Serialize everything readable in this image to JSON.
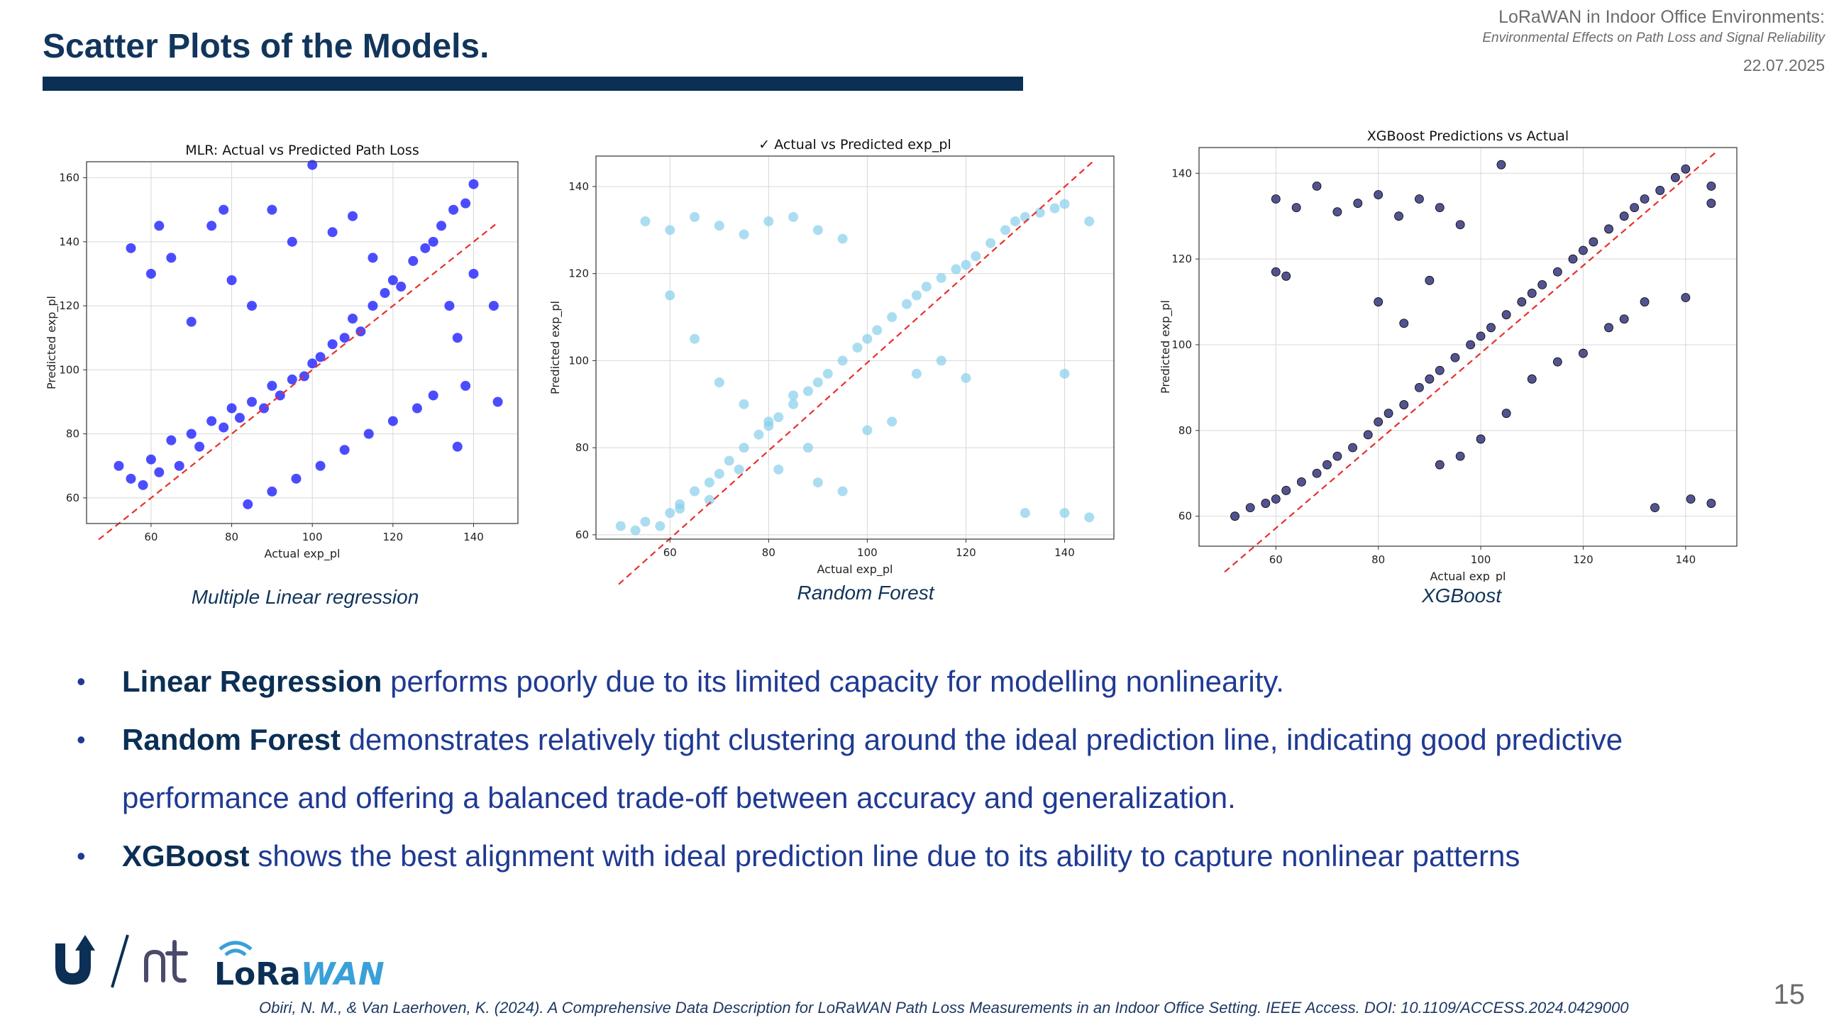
{
  "header": {
    "slide_title": "Scatter Plots of the Models.",
    "conference_title": "LoRaWAN in Indoor Office Environments:",
    "conference_subtitle": "Environmental Effects on Path Loss and Signal Reliability",
    "date": "22.07.2025"
  },
  "captions": [
    "Multiple Linear regression",
    "Random Forest",
    "XGBoost"
  ],
  "bullets": [
    {
      "bold": "Linear Regression",
      "text": " performs poorly due to its limited capacity for modelling nonlinearity."
    },
    {
      "bold": "Random Forest",
      "text": " demonstrates relatively tight clustering around the ideal prediction line, indicating good predictive performance and offering a balanced trade-off between accuracy and generalization."
    },
    {
      "bold": "XGBoost",
      "text": " shows the best alignment with ideal prediction line due to its ability to capture nonlinear patterns"
    }
  ],
  "logos": {
    "wordmark_lo": "Lo",
    "wordmark_ra": "Ra",
    "wordmark_wan": "WAN"
  },
  "footnote": "Obiri, N. M., & Van Laerhoven, K. (2024). A Comprehensive Data Description for LoRaWAN Path Loss Measurements in an Indoor Office Setting. IEEE Access. DOI: 10.1109/ACCESS.2024.0429000",
  "page_number": "15",
  "chart_data": [
    {
      "type": "scatter",
      "title": "MLR: Actual vs Predicted Path Loss",
      "xlabel": "Actual exp_pl",
      "ylabel": "Predicted exp_pl",
      "xlim": [
        44,
        151
      ],
      "ylim": [
        52,
        165
      ],
      "xticks": [
        60,
        80,
        100,
        120,
        140
      ],
      "yticks": [
        60,
        80,
        100,
        120,
        140,
        160
      ],
      "point_color": "#0000ff",
      "reference_line": {
        "color": "#e8302a",
        "style": "dashed",
        "from": [
          47,
          47
        ],
        "to": [
          146,
          146
        ]
      },
      "grid": true,
      "series": [
        {
          "points": [
            [
              52,
              70
            ],
            [
              55,
              66
            ],
            [
              58,
              64
            ],
            [
              60,
              72
            ],
            [
              62,
              68
            ],
            [
              65,
              78
            ],
            [
              67,
              70
            ],
            [
              70,
              80
            ],
            [
              72,
              76
            ],
            [
              75,
              84
            ],
            [
              78,
              82
            ],
            [
              80,
              88
            ],
            [
              82,
              85
            ],
            [
              85,
              90
            ],
            [
              88,
              88
            ],
            [
              90,
              95
            ],
            [
              92,
              92
            ],
            [
              95,
              97
            ],
            [
              98,
              98
            ],
            [
              100,
              102
            ],
            [
              102,
              104
            ],
            [
              105,
              108
            ],
            [
              108,
              110
            ],
            [
              110,
              116
            ],
            [
              112,
              112
            ],
            [
              115,
              120
            ],
            [
              118,
              124
            ],
            [
              120,
              128
            ],
            [
              122,
              126
            ],
            [
              125,
              134
            ],
            [
              128,
              138
            ],
            [
              130,
              140
            ],
            [
              132,
              145
            ],
            [
              135,
              150
            ],
            [
              138,
              152
            ],
            [
              140,
              158
            ],
            [
              136,
              110
            ],
            [
              138,
              95
            ],
            [
              140,
              130
            ],
            [
              134,
              120
            ],
            [
              60,
              130
            ],
            [
              65,
              135
            ],
            [
              70,
              115
            ],
            [
              75,
              145
            ],
            [
              80,
              128
            ],
            [
              85,
              120
            ],
            [
              90,
              150
            ],
            [
              95,
              140
            ],
            [
              100,
              164
            ],
            [
              105,
              143
            ],
            [
              110,
              148
            ],
            [
              115,
              135
            ],
            [
              55,
              138
            ],
            [
              62,
              145
            ],
            [
              78,
              150
            ],
            [
              84,
              58
            ],
            [
              90,
              62
            ],
            [
              96,
              66
            ],
            [
              102,
              70
            ],
            [
              108,
              75
            ],
            [
              114,
              80
            ],
            [
              120,
              84
            ],
            [
              126,
              88
            ],
            [
              130,
              92
            ],
            [
              145,
              120
            ],
            [
              146,
              90
            ],
            [
              136,
              76
            ]
          ]
        }
      ]
    },
    {
      "type": "scatter",
      "title": "✓ Actual vs Predicted exp_pl",
      "xlabel": "Actual exp_pl",
      "ylabel": "Predicted exp_pl",
      "xlim": [
        45,
        150
      ],
      "ylim": [
        59,
        147
      ],
      "xticks": [
        60,
        80,
        100,
        120,
        140
      ],
      "yticks": [
        60,
        80,
        100,
        120,
        140
      ],
      "point_color": "#87ceeb",
      "reference_line": {
        "color": "#e8302a",
        "style": "dashed",
        "from": [
          48,
          47
        ],
        "to": [
          146,
          146
        ]
      },
      "grid": true,
      "series": [
        {
          "points": [
            [
              50,
              62
            ],
            [
              53,
              61
            ],
            [
              55,
              63
            ],
            [
              58,
              62
            ],
            [
              60,
              65
            ],
            [
              62,
              67
            ],
            [
              65,
              70
            ],
            [
              68,
              72
            ],
            [
              70,
              74
            ],
            [
              72,
              77
            ],
            [
              75,
              80
            ],
            [
              78,
              83
            ],
            [
              80,
              86
            ],
            [
              82,
              87
            ],
            [
              85,
              90
            ],
            [
              88,
              93
            ],
            [
              90,
              95
            ],
            [
              92,
              97
            ],
            [
              95,
              100
            ],
            [
              98,
              103
            ],
            [
              100,
              105
            ],
            [
              102,
              107
            ],
            [
              105,
              110
            ],
            [
              108,
              113
            ],
            [
              110,
              115
            ],
            [
              112,
              117
            ],
            [
              115,
              119
            ],
            [
              118,
              121
            ],
            [
              120,
              122
            ],
            [
              122,
              124
            ],
            [
              125,
              127
            ],
            [
              128,
              130
            ],
            [
              130,
              132
            ],
            [
              132,
              133
            ],
            [
              135,
              134
            ],
            [
              138,
              135
            ],
            [
              140,
              136
            ],
            [
              55,
              132
            ],
            [
              60,
              130
            ],
            [
              65,
              133
            ],
            [
              70,
              131
            ],
            [
              75,
              129
            ],
            [
              80,
              132
            ],
            [
              85,
              133
            ],
            [
              90,
              130
            ],
            [
              95,
              128
            ],
            [
              60,
              115
            ],
            [
              65,
              105
            ],
            [
              70,
              95
            ],
            [
              75,
              90
            ],
            [
              80,
              85
            ],
            [
              85,
              92
            ],
            [
              90,
              72
            ],
            [
              95,
              70
            ],
            [
              100,
              84
            ],
            [
              105,
              86
            ],
            [
              110,
              97
            ],
            [
              115,
              100
            ],
            [
              120,
              96
            ],
            [
              62,
              66
            ],
            [
              68,
              68
            ],
            [
              74,
              75
            ],
            [
              82,
              75
            ],
            [
              88,
              80
            ],
            [
              132,
              65
            ],
            [
              140,
              65
            ],
            [
              145,
              64
            ],
            [
              140,
              97
            ],
            [
              145,
              132
            ]
          ]
        }
      ]
    },
    {
      "type": "scatter",
      "title": "XGBoost Predictions vs Actual",
      "xlabel": "Actual exp_pl",
      "ylabel": "Predicted exp_pl",
      "xlim": [
        45,
        150
      ],
      "ylim": [
        53,
        146
      ],
      "xticks": [
        60,
        80,
        100,
        120,
        140
      ],
      "yticks": [
        60,
        80,
        100,
        120,
        140
      ],
      "point_color": "#1a1a6b",
      "reference_line": {
        "color": "#e8302a",
        "style": "dashed",
        "from": [
          50,
          47
        ],
        "to": [
          146,
          145
        ]
      },
      "grid": true,
      "series": [
        {
          "points": [
            [
              52,
              60
            ],
            [
              55,
              62
            ],
            [
              58,
              63
            ],
            [
              60,
              64
            ],
            [
              62,
              66
            ],
            [
              65,
              68
            ],
            [
              68,
              70
            ],
            [
              70,
              72
            ],
            [
              72,
              74
            ],
            [
              75,
              76
            ],
            [
              78,
              79
            ],
            [
              80,
              82
            ],
            [
              82,
              84
            ],
            [
              85,
              86
            ],
            [
              88,
              90
            ],
            [
              90,
              92
            ],
            [
              92,
              94
            ],
            [
              95,
              97
            ],
            [
              98,
              100
            ],
            [
              100,
              102
            ],
            [
              102,
              104
            ],
            [
              105,
              107
            ],
            [
              108,
              110
            ],
            [
              110,
              112
            ],
            [
              112,
              114
            ],
            [
              115,
              117
            ],
            [
              118,
              120
            ],
            [
              120,
              122
            ],
            [
              122,
              124
            ],
            [
              125,
              127
            ],
            [
              128,
              130
            ],
            [
              130,
              132
            ],
            [
              132,
              134
            ],
            [
              135,
              136
            ],
            [
              138,
              139
            ],
            [
              140,
              141
            ],
            [
              60,
              134
            ],
            [
              64,
              132
            ],
            [
              68,
              137
            ],
            [
              72,
              131
            ],
            [
              76,
              133
            ],
            [
              80,
              135
            ],
            [
              84,
              130
            ],
            [
              88,
              134
            ],
            [
              92,
              132
            ],
            [
              96,
              128
            ],
            [
              104,
              142
            ],
            [
              60,
              117
            ],
            [
              62,
              116
            ],
            [
              80,
              110
            ],
            [
              85,
              105
            ],
            [
              90,
              115
            ],
            [
              92,
              72
            ],
            [
              96,
              74
            ],
            [
              100,
              78
            ],
            [
              105,
              84
            ],
            [
              110,
              92
            ],
            [
              115,
              96
            ],
            [
              120,
              98
            ],
            [
              125,
              104
            ],
            [
              128,
              106
            ],
            [
              132,
              110
            ],
            [
              140,
              111
            ],
            [
              145,
              63
            ],
            [
              134,
              62
            ],
            [
              141,
              64
            ],
            [
              145,
              133
            ],
            [
              145,
              137
            ]
          ]
        }
      ]
    }
  ]
}
